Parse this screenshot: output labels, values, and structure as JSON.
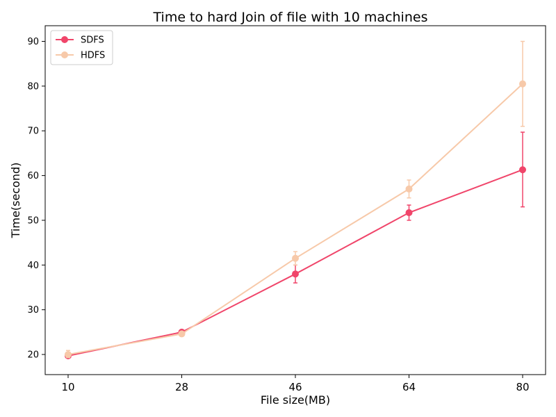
{
  "chart_data": {
    "type": "line",
    "title": "Time to hard Join of file with 10 machines",
    "xlabel": "File size(MB)",
    "ylabel": "Time(second)",
    "categories": [
      "10",
      "28",
      "46",
      "64",
      "80"
    ],
    "ylim": [
      15.5,
      93.5
    ],
    "yticks": [
      20,
      30,
      40,
      50,
      60,
      70,
      80,
      90
    ],
    "grid": false,
    "legend_position": "upper-left",
    "series": [
      {
        "name": "SDFS",
        "color": "#f0456a",
        "values": [
          19.7,
          25.0,
          38.0,
          51.7,
          61.3
        ],
        "err_low": [
          19.4,
          24.6,
          36.0,
          50.0,
          53.0
        ],
        "err_high": [
          20.0,
          25.4,
          40.0,
          53.4,
          69.7
        ]
      },
      {
        "name": "HDFS",
        "color": "#f7c9a9",
        "values": [
          20.0,
          24.6,
          41.5,
          57.0,
          80.5
        ],
        "err_low": [
          19.3,
          24.2,
          40.0,
          55.0,
          71.0
        ],
        "err_high": [
          20.9,
          25.0,
          43.0,
          59.0,
          90.0
        ]
      }
    ]
  }
}
